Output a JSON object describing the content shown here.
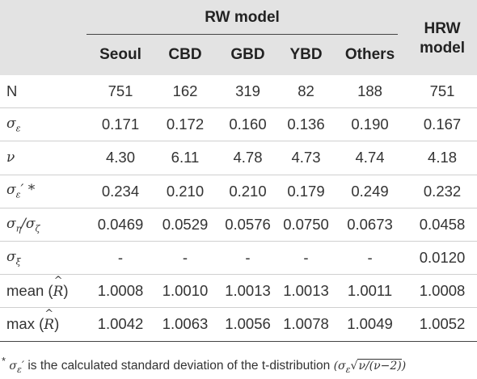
{
  "header": {
    "group_label": "RW model",
    "hrw_label_line1": "HRW",
    "hrw_label_line2": "model",
    "columns": [
      "Seoul",
      "CBD",
      "GBD",
      "YBD",
      "Others"
    ]
  },
  "rows": [
    {
      "label": "N",
      "values": [
        "751",
        "162",
        "319",
        "82",
        "188",
        "751"
      ]
    },
    {
      "label": "σε",
      "values": [
        "0.171",
        "0.172",
        "0.160",
        "0.136",
        "0.190",
        "0.167"
      ]
    },
    {
      "label": "ν",
      "values": [
        "4.30",
        "6.11",
        "4.78",
        "4.73",
        "4.74",
        "4.18"
      ]
    },
    {
      "label": "σε′*",
      "values": [
        "0.234",
        "0.210",
        "0.210",
        "0.179",
        "0.249",
        "0.232"
      ]
    },
    {
      "label": "ση/σζ",
      "values": [
        "0.0469",
        "0.0529",
        "0.0576",
        "0.0750",
        "0.0673",
        "0.0458"
      ]
    },
    {
      "label": "σξ",
      "values": [
        "-",
        "-",
        "-",
        "-",
        "-",
        "0.0120"
      ]
    },
    {
      "label": "mean (R)",
      "values": [
        "1.0008",
        "1.0010",
        "1.0013",
        "1.0013",
        "1.0011",
        "1.0008"
      ]
    },
    {
      "label": "max (R)",
      "values": [
        "1.0042",
        "1.0063",
        "1.0056",
        "1.0078",
        "1.0049",
        "1.0052"
      ]
    }
  ],
  "footnote": {
    "star": "*",
    "symbol": "σε′",
    "text": " is the calculated standard deviation of the t-distribution ",
    "formula": "(σε√ν/(ν−2))"
  }
}
